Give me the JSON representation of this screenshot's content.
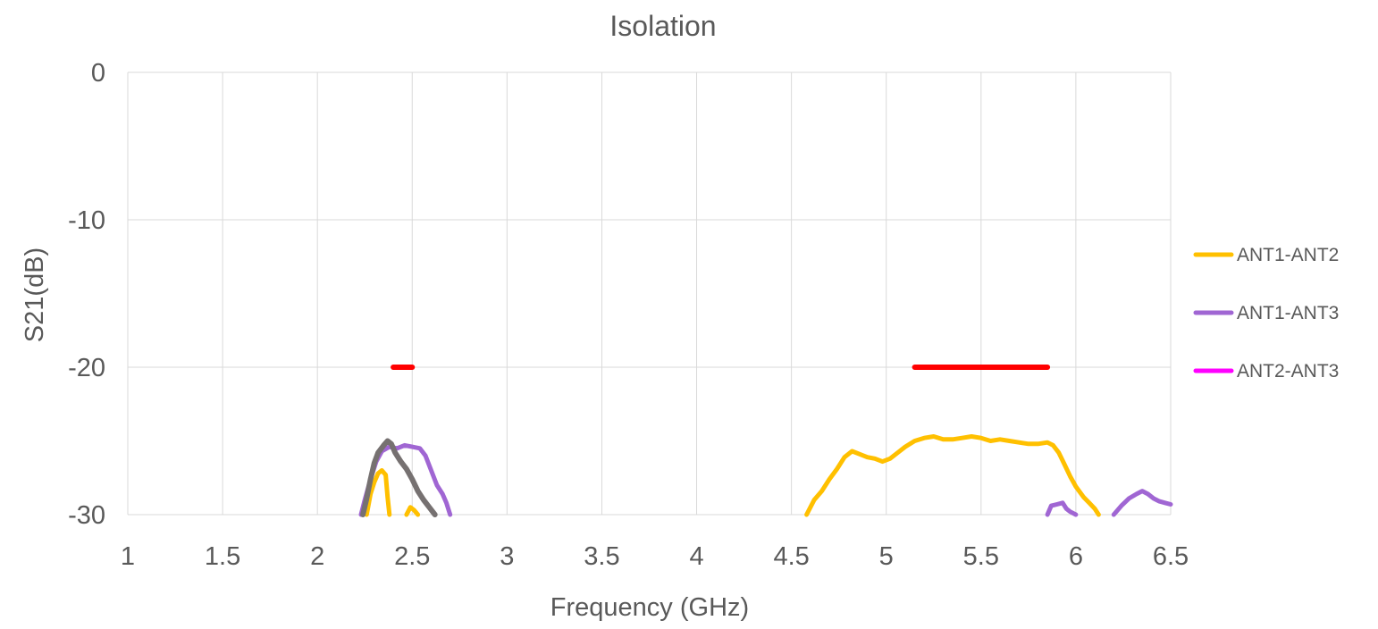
{
  "chart_data": {
    "type": "line",
    "title": "Isolation",
    "xlabel": "Frequency (GHz)",
    "ylabel": "S21(dB)",
    "xlim": [
      1,
      6.5
    ],
    "ylim": [
      -30,
      0
    ],
    "x_ticks": [
      1,
      1.5,
      2,
      2.5,
      3,
      3.5,
      4,
      4.5,
      5,
      5.5,
      6,
      6.5
    ],
    "x_tick_labels": [
      "1",
      "1.5",
      "2",
      "2.5",
      "3",
      "3.5",
      "4",
      "4.5",
      "5",
      "5.5",
      "6",
      "6.5"
    ],
    "y_ticks": [
      0,
      -10,
      -20,
      -30
    ],
    "y_tick_labels": [
      "0",
      "-10",
      "-20",
      "-30"
    ],
    "grid": true,
    "legend_position": "right",
    "series": [
      {
        "name": "ANT1-ANT2",
        "color": "#FFC000",
        "segments": [
          [
            [
              2.26,
              -30
            ],
            [
              2.28,
              -28.6
            ],
            [
              2.3,
              -27.8
            ],
            [
              2.32,
              -27.2
            ],
            [
              2.34,
              -27.0
            ],
            [
              2.36,
              -27.3
            ],
            [
              2.37,
              -28.8
            ],
            [
              2.38,
              -30
            ]
          ],
          [
            [
              2.47,
              -30
            ],
            [
              2.49,
              -29.5
            ],
            [
              2.51,
              -29.7
            ],
            [
              2.53,
              -30
            ]
          ],
          [
            [
              4.58,
              -30
            ],
            [
              4.62,
              -29.0
            ],
            [
              4.66,
              -28.4
            ],
            [
              4.7,
              -27.6
            ],
            [
              4.74,
              -26.9
            ],
            [
              4.78,
              -26.1
            ],
            [
              4.82,
              -25.7
            ],
            [
              4.86,
              -25.9
            ],
            [
              4.9,
              -26.1
            ],
            [
              4.94,
              -26.2
            ],
            [
              4.98,
              -26.4
            ],
            [
              5.02,
              -26.2
            ],
            [
              5.06,
              -25.8
            ],
            [
              5.1,
              -25.4
            ],
            [
              5.15,
              -25.0
            ],
            [
              5.2,
              -24.8
            ],
            [
              5.25,
              -24.7
            ],
            [
              5.3,
              -24.9
            ],
            [
              5.35,
              -24.9
            ],
            [
              5.4,
              -24.8
            ],
            [
              5.45,
              -24.7
            ],
            [
              5.5,
              -24.8
            ],
            [
              5.55,
              -25.0
            ],
            [
              5.6,
              -24.9
            ],
            [
              5.65,
              -25.0
            ],
            [
              5.7,
              -25.1
            ],
            [
              5.75,
              -25.2
            ],
            [
              5.8,
              -25.2
            ],
            [
              5.85,
              -25.1
            ],
            [
              5.88,
              -25.3
            ],
            [
              5.91,
              -25.8
            ],
            [
              5.94,
              -26.6
            ],
            [
              5.97,
              -27.4
            ],
            [
              6.0,
              -28.1
            ],
            [
              6.04,
              -28.8
            ],
            [
              6.07,
              -29.2
            ],
            [
              6.1,
              -29.6
            ],
            [
              6.12,
              -30
            ]
          ]
        ]
      },
      {
        "name": "ANT1-ANT3",
        "color": "#A066D3",
        "segments": [
          [
            [
              2.23,
              -30
            ],
            [
              2.25,
              -29.0
            ],
            [
              2.28,
              -27.6
            ],
            [
              2.31,
              -26.4
            ],
            [
              2.34,
              -25.7
            ],
            [
              2.38,
              -25.4
            ],
            [
              2.42,
              -25.5
            ],
            [
              2.46,
              -25.3
            ],
            [
              2.5,
              -25.4
            ],
            [
              2.54,
              -25.5
            ],
            [
              2.57,
              -26.0
            ],
            [
              2.6,
              -27.0
            ],
            [
              2.63,
              -28.0
            ],
            [
              2.66,
              -28.6
            ],
            [
              2.68,
              -29.2
            ],
            [
              2.7,
              -30
            ]
          ],
          [
            [
              5.85,
              -30
            ],
            [
              5.87,
              -29.4
            ],
            [
              5.9,
              -29.3
            ],
            [
              5.93,
              -29.2
            ],
            [
              5.95,
              -29.6
            ],
            [
              5.97,
              -29.8
            ],
            [
              6.0,
              -30
            ]
          ],
          [
            [
              6.2,
              -30
            ],
            [
              6.24,
              -29.4
            ],
            [
              6.28,
              -28.9
            ],
            [
              6.32,
              -28.6
            ],
            [
              6.35,
              -28.4
            ],
            [
              6.38,
              -28.6
            ],
            [
              6.41,
              -28.9
            ],
            [
              6.44,
              -29.1
            ],
            [
              6.47,
              -29.2
            ],
            [
              6.5,
              -29.3
            ]
          ]
        ]
      },
      {
        "name": "ANT2-ANT3",
        "color": "#FF00FF",
        "segments": []
      },
      {
        "color": "#767171",
        "segments": [
          [
            [
              2.24,
              -30
            ],
            [
              2.26,
              -28.9
            ],
            [
              2.28,
              -27.6
            ],
            [
              2.3,
              -26.5
            ],
            [
              2.32,
              -25.8
            ],
            [
              2.35,
              -25.3
            ],
            [
              2.37,
              -25.0
            ],
            [
              2.39,
              -25.2
            ],
            [
              2.41,
              -25.8
            ],
            [
              2.44,
              -26.4
            ],
            [
              2.47,
              -26.9
            ],
            [
              2.5,
              -27.6
            ],
            [
              2.53,
              -28.4
            ],
            [
              2.56,
              -29.0
            ],
            [
              2.59,
              -29.5
            ],
            [
              2.62,
              -30
            ]
          ]
        ]
      },
      {
        "color": "#FF0000",
        "segments": [
          [
            [
              2.4,
              -20
            ],
            [
              2.5,
              -20
            ]
          ],
          [
            [
              5.15,
              -20
            ],
            [
              5.85,
              -20
            ]
          ]
        ]
      }
    ]
  }
}
